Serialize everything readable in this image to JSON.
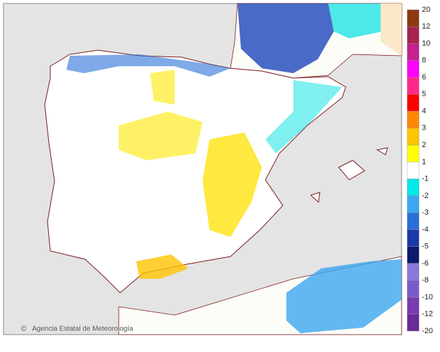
{
  "legend": {
    "labels": [
      "20",
      "12",
      "10",
      "8",
      "6",
      "5",
      "4",
      "3",
      "2",
      "1",
      "-1",
      "-2",
      "-3",
      "-4",
      "-5",
      "-6",
      "-8",
      "-10",
      "-12",
      "-20"
    ],
    "colors": [
      "#8b3a12",
      "#a8234f",
      "#c4208e",
      "#ff00ff",
      "#ff2a8a",
      "#ff0000",
      "#ff8800",
      "#ffc400",
      "#ffff00",
      "#ffffff",
      "#00e8e8",
      "#3ca6f0",
      "#2a6fd8",
      "#1a3aa8",
      "#0c1a6e",
      "#8a78d8",
      "#7a5ac8",
      "#7a3ab0",
      "#6a2a98"
    ]
  },
  "credit": {
    "symbol": "©",
    "text": "Agencia Estatal de Meteorología"
  }
}
